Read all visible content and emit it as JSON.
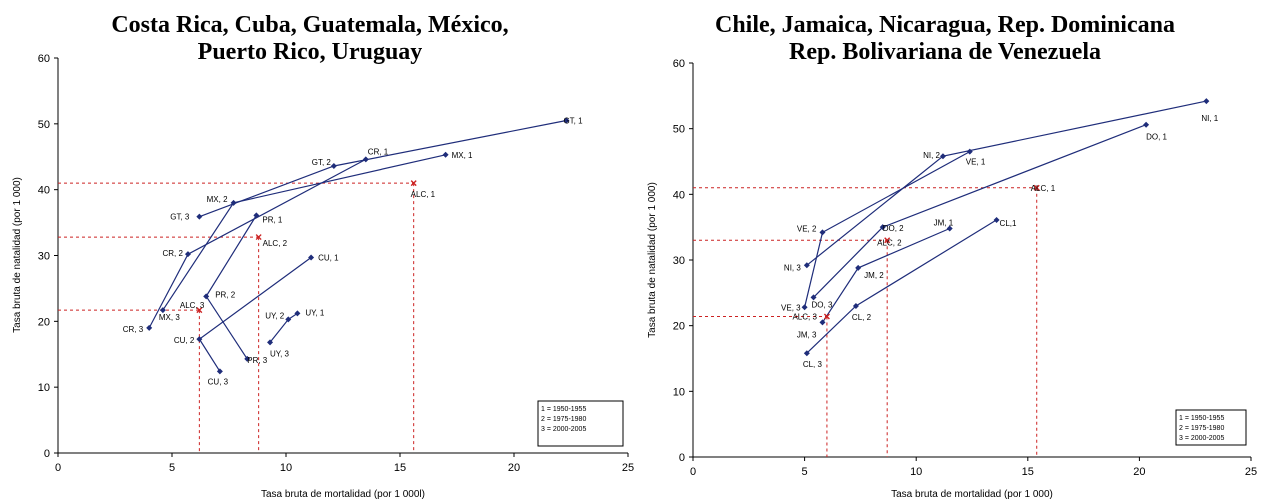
{
  "chart_data": [
    {
      "type": "scatter",
      "title": "Costa Rica, Cuba, Guatemala, México,\nPuerto Rico, Uruguay",
      "xlabel": "Tasa bruta de mortalidad (por 1 000l)",
      "ylabel": "Tasa bruta de natalidad (por 1 000)",
      "xlim": [
        0,
        25
      ],
      "ylim": [
        0,
        60
      ],
      "xticks": [
        "0",
        "5",
        "10",
        "15",
        "20",
        "25"
      ],
      "yticks": [
        "0",
        "10",
        "20",
        "30",
        "40",
        "50",
        "60"
      ],
      "grid": false,
      "series": [
        {
          "points": [
            {
              "x": 13.5,
              "y": 44.6,
              "label": "CR, 1"
            },
            {
              "x": 5.7,
              "y": 30.2,
              "label": "CR, 2"
            },
            {
              "x": 4.0,
              "y": 19.0,
              "label": "CR, 3"
            }
          ]
        },
        {
          "points": [
            {
              "x": 11.1,
              "y": 29.7,
              "label": "CU, 1"
            },
            {
              "x": 6.2,
              "y": 17.3,
              "label": "CU, 2"
            },
            {
              "x": 7.1,
              "y": 12.4,
              "label": "CU, 3"
            }
          ]
        },
        {
          "points": [
            {
              "x": 22.3,
              "y": 50.5,
              "label": "GT, 1"
            },
            {
              "x": 12.1,
              "y": 43.6,
              "label": "GT, 2"
            },
            {
              "x": 6.2,
              "y": 35.9,
              "label": "GT, 3"
            }
          ]
        },
        {
          "points": [
            {
              "x": 17.0,
              "y": 45.3,
              "label": "MX, 1"
            },
            {
              "x": 7.7,
              "y": 38.0,
              "label": "MX, 2"
            },
            {
              "x": 4.6,
              "y": 21.7,
              "label": "MX, 3"
            }
          ]
        },
        {
          "points": [
            {
              "x": 8.7,
              "y": 36.1,
              "label": "PR, 1"
            },
            {
              "x": 6.5,
              "y": 23.8,
              "label": "PR, 2"
            },
            {
              "x": 8.3,
              "y": 14.3,
              "label": "PR, 3"
            }
          ]
        },
        {
          "points": [
            {
              "x": 10.5,
              "y": 21.2,
              "label": "UY, 1"
            },
            {
              "x": 10.1,
              "y": 20.3,
              "label": "UY, 2"
            },
            {
              "x": 9.3,
              "y": 16.8,
              "label": "UY, 3"
            }
          ]
        }
      ],
      "reference": [
        {
          "x": 15.6,
          "y": 41.0,
          "label": "ALC, 1"
        },
        {
          "x": 8.8,
          "y": 32.8,
          "label": "ALC, 2"
        },
        {
          "x": 6.2,
          "y": 21.7,
          "label": "ALC, 3"
        }
      ],
      "legend": {
        "position": "bottom-right",
        "items": [
          "1 = 1950-1955",
          "2 = 1975-1980",
          "3 = 2000-2005"
        ]
      },
      "colors": {
        "series": "#1f2d7a",
        "reference": "#cc2222"
      }
    },
    {
      "type": "scatter",
      "title": "Chile, Jamaica, Nicaragua, Rep. Dominicana\nRep. Bolivariana de Venezuela",
      "xlabel": "Tasa bruta de mortalidad (por 1 000)",
      "ylabel": "Tasa bruta de natalidad (por 1 000)",
      "xlim": [
        0,
        25
      ],
      "ylim": [
        0,
        60
      ],
      "xticks": [
        "0",
        "5",
        "10",
        "15",
        "20",
        "25"
      ],
      "yticks": [
        "0",
        "10",
        "20",
        "30",
        "40",
        "50",
        "60"
      ],
      "grid": false,
      "series": [
        {
          "points": [
            {
              "x": 23.0,
              "y": 54.2,
              "label": "NI, 1"
            },
            {
              "x": 11.2,
              "y": 45.8,
              "label": "NI, 2"
            },
            {
              "x": 5.1,
              "y": 29.2,
              "label": "NI, 3"
            }
          ]
        },
        {
          "points": [
            {
              "x": 20.3,
              "y": 50.6,
              "label": "DO, 1"
            },
            {
              "x": 8.5,
              "y": 35.0,
              "label": "DO, 2"
            },
            {
              "x": 5.4,
              "y": 24.3,
              "label": "DO, 3"
            }
          ]
        },
        {
          "points": [
            {
              "x": 12.4,
              "y": 46.5,
              "label": "VE, 1"
            },
            {
              "x": 5.8,
              "y": 34.2,
              "label": "VE, 2"
            },
            {
              "x": 5.0,
              "y": 22.8,
              "label": "VE, 3"
            }
          ]
        },
        {
          "points": [
            {
              "x": 11.5,
              "y": 34.8,
              "label": "JM, 1"
            },
            {
              "x": 7.4,
              "y": 28.8,
              "label": "JM, 2"
            },
            {
              "x": 5.8,
              "y": 20.5,
              "label": "JM, 3"
            }
          ]
        },
        {
          "points": [
            {
              "x": 13.6,
              "y": 36.1,
              "label": "CL,1"
            },
            {
              "x": 7.3,
              "y": 23.0,
              "label": "CL, 2"
            },
            {
              "x": 5.1,
              "y": 15.8,
              "label": "CL, 3"
            }
          ]
        }
      ],
      "reference": [
        {
          "x": 15.4,
          "y": 41.0,
          "label": "ALC, 1"
        },
        {
          "x": 8.7,
          "y": 33.0,
          "label": "ALC, 2"
        },
        {
          "x": 6.0,
          "y": 21.4,
          "label": "ALC, 3"
        }
      ],
      "legend": {
        "position": "bottom-right",
        "items": [
          "1 = 1950-1955",
          "2 = 1975-1980",
          "3 = 2000-2005"
        ]
      },
      "colors": {
        "series": "#1f2d7a",
        "reference": "#cc2222"
      }
    }
  ]
}
